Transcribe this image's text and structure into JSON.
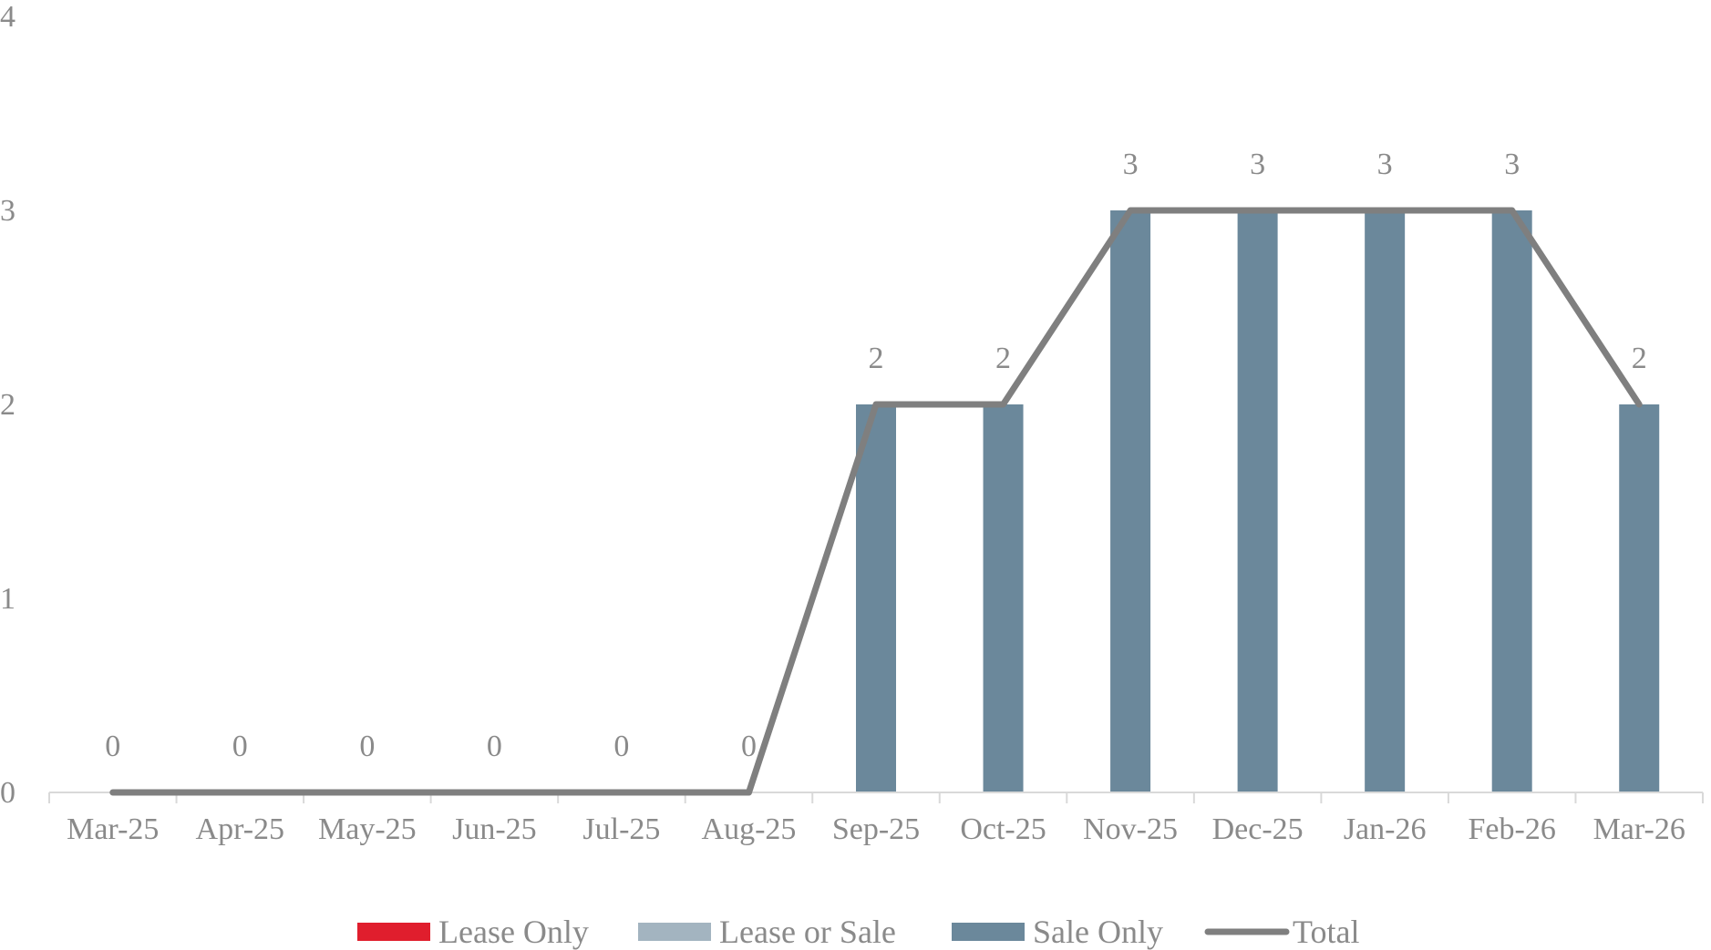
{
  "chart_data": {
    "type": "bar",
    "categories": [
      "Mar-25",
      "Apr-25",
      "May-25",
      "Jun-25",
      "Jul-25",
      "Aug-25",
      "Sep-25",
      "Oct-25",
      "Nov-25",
      "Dec-25",
      "Jan-26",
      "Feb-26",
      "Mar-26"
    ],
    "series": [
      {
        "name": "Lease Only",
        "kind": "bar",
        "color": "#e01e2d",
        "values": [
          0,
          0,
          0,
          0,
          0,
          0,
          0,
          0,
          0,
          0,
          0,
          0,
          0
        ]
      },
      {
        "name": "Lease or Sale",
        "kind": "bar",
        "color": "#a3b4c0",
        "values": [
          0,
          0,
          0,
          0,
          0,
          0,
          0,
          0,
          0,
          0,
          0,
          0,
          0
        ]
      },
      {
        "name": "Sale Only",
        "kind": "bar",
        "color": "#6b889b",
        "values": [
          0,
          0,
          0,
          0,
          0,
          0,
          2,
          2,
          3,
          3,
          3,
          3,
          2
        ]
      },
      {
        "name": "Total",
        "kind": "line",
        "color": "#7f7f7f",
        "values": [
          0,
          0,
          0,
          0,
          0,
          0,
          2,
          2,
          3,
          3,
          3,
          3,
          2
        ]
      }
    ],
    "data_labels": [
      "0",
      "0",
      "0",
      "0",
      "0",
      "0",
      "2",
      "2",
      "3",
      "3",
      "3",
      "3",
      "2"
    ],
    "y_ticks": [
      "0",
      "1",
      "2",
      "3",
      "4"
    ],
    "ylim": [
      0,
      4
    ],
    "grid": false,
    "legend_position": "bottom",
    "title": "",
    "xlabel": "",
    "ylabel": ""
  }
}
